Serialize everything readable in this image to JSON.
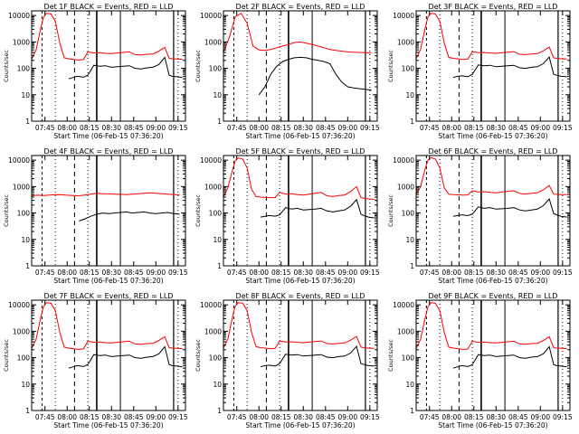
{
  "ylabel": "Counts/sec",
  "xlabel": "Start Time (06-Feb-15 07:36:20)",
  "xticks": [
    "07:45",
    "08:00",
    "08:15",
    "08:30",
    "08:45",
    "09:00",
    "09:15"
  ],
  "yticks": [
    "1",
    "10",
    "100",
    "1000",
    "10000"
  ],
  "colors": {
    "events": "#000000",
    "lld": "#ff0000"
  },
  "chart_data": [
    {
      "type": "line",
      "title": "Det 1F BLACK = Events, RED = LLD",
      "x_minutes": [
        0,
        3,
        6,
        8,
        10,
        13,
        16,
        19,
        22,
        25,
        28,
        31,
        33,
        35,
        38,
        42,
        46,
        50,
        54,
        58,
        62,
        66,
        70,
        74,
        78,
        82,
        86,
        90,
        93,
        95,
        98,
        102
      ],
      "xlim_minutes": [
        0,
        104
      ],
      "ylim": [
        1,
        15000
      ],
      "scale": "log",
      "series": [
        {
          "name": "LLD",
          "values": [
            220,
            500,
            3000,
            8500,
            12000,
            11500,
            6000,
            900,
            250,
            230,
            220,
            210,
            210,
            215,
            420,
            380,
            390,
            370,
            360,
            380,
            400,
            420,
            330,
            320,
            340,
            350,
            450,
            620,
            240,
            230,
            225,
            220
          ]
        },
        {
          "name": "Events",
          "values": [
            null,
            null,
            null,
            null,
            null,
            null,
            null,
            null,
            null,
            40,
            45,
            50,
            48,
            46,
            55,
            130,
            120,
            125,
            110,
            115,
            120,
            125,
            100,
            95,
            105,
            110,
            140,
            260,
            55,
            50,
            48,
            45
          ]
        }
      ]
    },
    {
      "type": "line",
      "title": "Det 2F BLACK = Events, RED = LLD",
      "x_minutes": [
        0,
        4,
        8,
        12,
        16,
        20,
        24,
        28,
        32,
        36,
        40,
        44,
        48,
        52,
        56,
        60,
        64,
        68,
        72,
        76,
        80,
        84,
        88,
        92,
        96,
        100
      ],
      "xlim_minutes": [
        0,
        104
      ],
      "ylim": [
        1,
        15000
      ],
      "scale": "log",
      "series": [
        {
          "name": "LLD",
          "values": [
            400,
            1500,
            9000,
            12000,
            5000,
            700,
            500,
            480,
            520,
            600,
            700,
            800,
            950,
            1000,
            900,
            800,
            700,
            600,
            520,
            480,
            450,
            420,
            410,
            400,
            390,
            380
          ]
        },
        {
          "name": "Events",
          "values": [
            null,
            null,
            null,
            null,
            null,
            null,
            10,
            20,
            60,
            120,
            180,
            220,
            250,
            260,
            250,
            220,
            200,
            180,
            150,
            60,
            30,
            20,
            18,
            17,
            16,
            15
          ]
        }
      ]
    },
    {
      "type": "line",
      "title": "Det 3F BLACK = Events, RED = LLD",
      "x_minutes": [
        0,
        3,
        6,
        8,
        10,
        13,
        16,
        19,
        22,
        25,
        28,
        31,
        33,
        35,
        38,
        42,
        46,
        50,
        54,
        58,
        62,
        66,
        70,
        74,
        78,
        82,
        86,
        90,
        93,
        95,
        98,
        102
      ],
      "xlim_minutes": [
        0,
        104
      ],
      "ylim": [
        1,
        15000
      ],
      "scale": "log",
      "series": [
        {
          "name": "LLD",
          "values": [
            230,
            520,
            3200,
            9000,
            12000,
            11500,
            6000,
            900,
            260,
            240,
            230,
            220,
            220,
            225,
            430,
            390,
            400,
            380,
            370,
            390,
            410,
            430,
            340,
            330,
            350,
            360,
            460,
            640,
            250,
            240,
            230,
            225
          ]
        },
        {
          "name": "Events",
          "values": [
            null,
            null,
            null,
            null,
            null,
            null,
            null,
            null,
            null,
            45,
            50,
            52,
            50,
            48,
            60,
            135,
            125,
            130,
            115,
            120,
            125,
            130,
            105,
            100,
            110,
            115,
            150,
            270,
            60,
            55,
            50,
            48
          ]
        }
      ]
    },
    {
      "type": "line",
      "title": "Det 4F BLACK = Events, RED = LLD",
      "x_minutes": [
        0,
        4,
        8,
        12,
        16,
        20,
        24,
        28,
        32,
        36,
        40,
        44,
        48,
        52,
        56,
        60,
        64,
        68,
        72,
        76,
        80,
        84,
        88,
        92,
        96,
        100
      ],
      "xlim_minutes": [
        0,
        104
      ],
      "ylim": [
        1,
        15000
      ],
      "scale": "log",
      "series": [
        {
          "name": "LLD",
          "values": [
            450,
            470,
            460,
            480,
            500,
            490,
            470,
            460,
            450,
            480,
            520,
            560,
            540,
            530,
            520,
            510,
            500,
            520,
            540,
            560,
            580,
            560,
            540,
            520,
            500,
            490
          ]
        },
        {
          "name": "Events",
          "values": [
            null,
            null,
            null,
            null,
            null,
            null,
            null,
            null,
            50,
            60,
            75,
            90,
            100,
            95,
            100,
            105,
            110,
            100,
            105,
            110,
            100,
            95,
            100,
            105,
            95,
            90
          ]
        }
      ]
    },
    {
      "type": "line",
      "title": "Det 5F BLACK = Events, RED = LLD",
      "x_minutes": [
        0,
        3,
        6,
        8,
        10,
        13,
        16,
        19,
        22,
        25,
        28,
        31,
        33,
        35,
        38,
        42,
        46,
        50,
        54,
        58,
        62,
        66,
        70,
        74,
        78,
        82,
        86,
        90,
        93,
        95,
        98,
        102
      ],
      "xlim_minutes": [
        0,
        104
      ],
      "ylim": [
        1,
        15000
      ],
      "scale": "log",
      "series": [
        {
          "name": "LLD",
          "values": [
            400,
            900,
            4000,
            9500,
            12000,
            11000,
            5000,
            800,
            420,
            400,
            390,
            380,
            380,
            385,
            600,
            520,
            540,
            500,
            480,
            520,
            560,
            600,
            450,
            420,
            460,
            480,
            650,
            1000,
            380,
            360,
            340,
            330
          ]
        },
        {
          "name": "Events",
          "values": [
            null,
            null,
            null,
            null,
            null,
            null,
            null,
            null,
            null,
            70,
            75,
            80,
            78,
            76,
            85,
            160,
            140,
            150,
            130,
            135,
            140,
            150,
            120,
            110,
            120,
            130,
            180,
            320,
            90,
            80,
            70,
            65
          ]
        }
      ]
    },
    {
      "type": "line",
      "title": "Det 6F BLACK = Events, RED = LLD",
      "x_minutes": [
        0,
        3,
        6,
        8,
        10,
        13,
        16,
        19,
        22,
        25,
        28,
        31,
        33,
        35,
        38,
        42,
        46,
        50,
        54,
        58,
        62,
        66,
        70,
        74,
        78,
        82,
        86,
        90,
        93,
        95,
        98,
        102
      ],
      "xlim_minutes": [
        0,
        104
      ],
      "ylim": [
        1,
        15000
      ],
      "scale": "log",
      "series": [
        {
          "name": "LLD",
          "values": [
            500,
            1000,
            4500,
            10000,
            12500,
            11000,
            5000,
            900,
            520,
            500,
            490,
            480,
            480,
            485,
            700,
            620,
            640,
            600,
            580,
            620,
            660,
            700,
            550,
            520,
            560,
            580,
            750,
            1100,
            520,
            510,
            500,
            500
          ]
        },
        {
          "name": "Events",
          "values": [
            null,
            null,
            null,
            null,
            null,
            null,
            null,
            null,
            null,
            75,
            80,
            85,
            82,
            80,
            90,
            170,
            150,
            160,
            140,
            145,
            150,
            160,
            130,
            120,
            130,
            140,
            190,
            340,
            95,
            85,
            75,
            70
          ]
        }
      ]
    },
    {
      "type": "line",
      "title": "Det 7F BLACK = Events, RED = LLD",
      "x_minutes": [
        0,
        3,
        6,
        8,
        10,
        13,
        16,
        19,
        22,
        25,
        28,
        31,
        33,
        35,
        38,
        42,
        46,
        50,
        54,
        58,
        62,
        66,
        70,
        74,
        78,
        82,
        86,
        90,
        93,
        95,
        98,
        102
      ],
      "xlim_minutes": [
        0,
        104
      ],
      "ylim": [
        1,
        15000
      ],
      "scale": "log",
      "series": [
        {
          "name": "LLD",
          "values": [
            220,
            500,
            3000,
            8500,
            12000,
            11500,
            6000,
            900,
            250,
            230,
            220,
            210,
            210,
            215,
            420,
            380,
            390,
            370,
            360,
            380,
            400,
            420,
            330,
            320,
            340,
            350,
            450,
            620,
            240,
            230,
            225,
            220
          ]
        },
        {
          "name": "Events",
          "values": [
            null,
            null,
            null,
            null,
            null,
            null,
            null,
            null,
            null,
            40,
            45,
            50,
            48,
            46,
            55,
            130,
            120,
            125,
            110,
            115,
            120,
            125,
            100,
            95,
            105,
            110,
            140,
            260,
            55,
            50,
            48,
            45
          ]
        }
      ]
    },
    {
      "type": "line",
      "title": "Det 8F BLACK = Events, RED = LLD",
      "x_minutes": [
        0,
        3,
        6,
        8,
        10,
        13,
        16,
        19,
        22,
        25,
        28,
        31,
        33,
        35,
        38,
        42,
        46,
        50,
        54,
        58,
        62,
        66,
        70,
        74,
        78,
        82,
        86,
        90,
        93,
        95,
        98,
        102
      ],
      "xlim_minutes": [
        0,
        104
      ],
      "ylim": [
        1,
        15000
      ],
      "scale": "log",
      "series": [
        {
          "name": "LLD",
          "values": [
            230,
            520,
            3200,
            9000,
            12000,
            11500,
            6000,
            900,
            260,
            240,
            230,
            220,
            220,
            225,
            430,
            390,
            400,
            380,
            370,
            390,
            410,
            430,
            340,
            330,
            350,
            360,
            460,
            640,
            250,
            240,
            230,
            225
          ]
        },
        {
          "name": "Events",
          "values": [
            null,
            null,
            null,
            null,
            null,
            null,
            null,
            null,
            null,
            45,
            50,
            52,
            50,
            48,
            60,
            135,
            125,
            130,
            115,
            120,
            125,
            130,
            105,
            100,
            110,
            115,
            150,
            270,
            60,
            55,
            50,
            48
          ]
        }
      ]
    },
    {
      "type": "line",
      "title": "Det 9F BLACK = Events, RED = LLD",
      "x_minutes": [
        0,
        3,
        6,
        8,
        10,
        13,
        16,
        19,
        22,
        25,
        28,
        31,
        33,
        35,
        38,
        42,
        46,
        50,
        54,
        58,
        62,
        66,
        70,
        74,
        78,
        82,
        86,
        90,
        93,
        95,
        98,
        102
      ],
      "xlim_minutes": [
        0,
        104
      ],
      "ylim": [
        1,
        15000
      ],
      "scale": "log",
      "series": [
        {
          "name": "LLD",
          "values": [
            220,
            500,
            3000,
            8500,
            12000,
            11500,
            6000,
            900,
            250,
            230,
            220,
            210,
            210,
            215,
            420,
            380,
            390,
            370,
            360,
            380,
            400,
            420,
            330,
            320,
            340,
            350,
            450,
            620,
            240,
            230,
            225,
            220
          ]
        },
        {
          "name": "Events",
          "values": [
            null,
            null,
            null,
            null,
            null,
            null,
            null,
            null,
            null,
            40,
            45,
            50,
            48,
            46,
            55,
            130,
            120,
            125,
            110,
            115,
            120,
            125,
            100,
            95,
            105,
            110,
            140,
            260,
            55,
            50,
            48,
            45
          ]
        }
      ]
    }
  ]
}
